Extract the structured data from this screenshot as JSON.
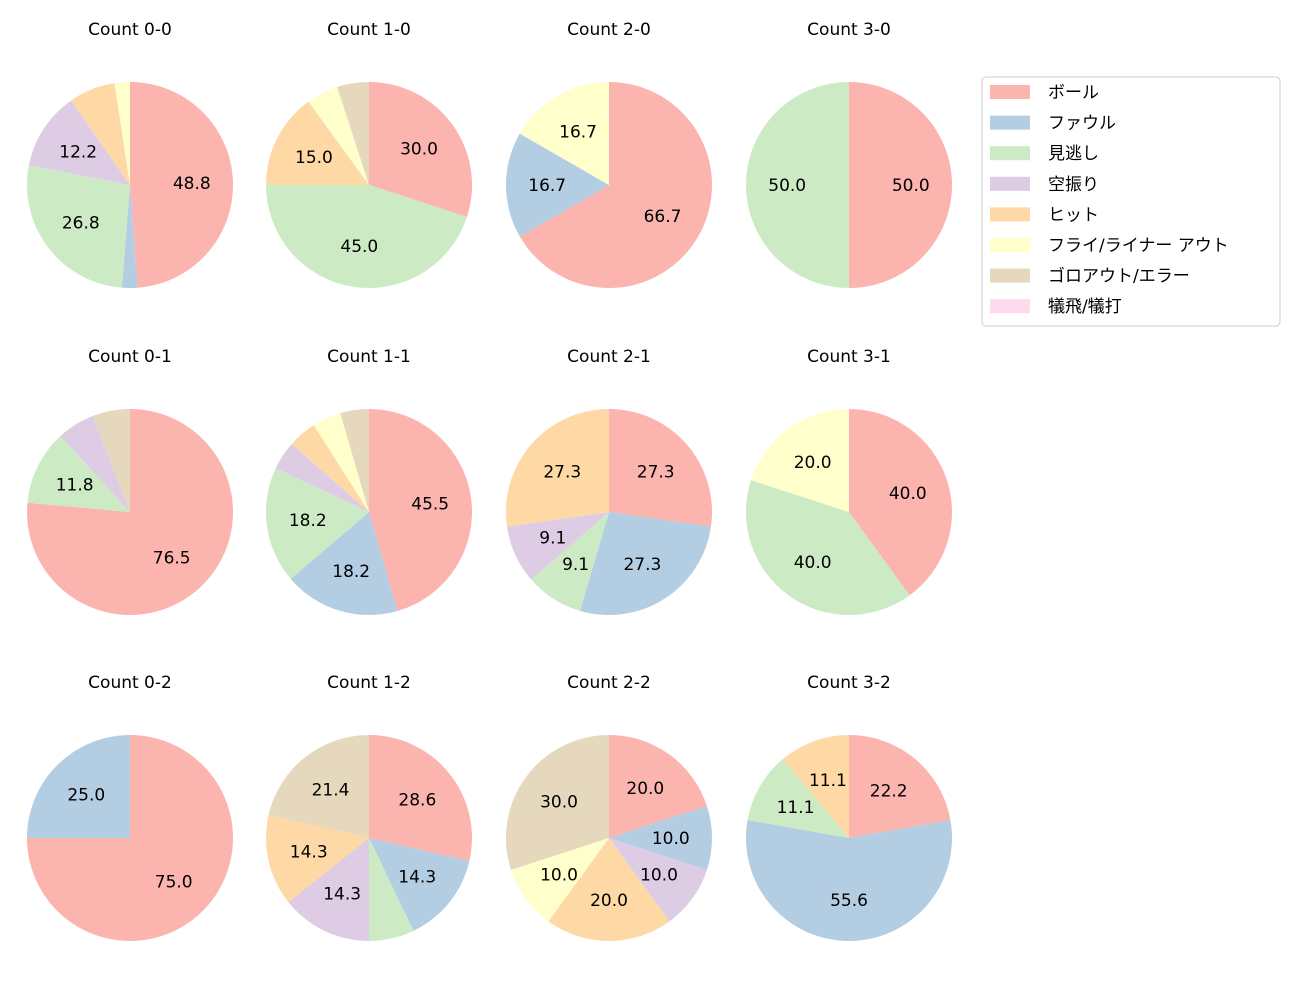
{
  "chart_data": {
    "type": "pie",
    "categories": [
      "ボール",
      "ファウル",
      "見逃し",
      "空振り",
      "ヒット",
      "フライ/ライナー アウト",
      "ゴロアウト/エラー",
      "犠飛/犠打"
    ],
    "colors": [
      "#fbb4ae",
      "#b3cde3",
      "#ccebc5",
      "#decbe4",
      "#fed9a6",
      "#ffffcc",
      "#e5d8bd",
      "#fddaec"
    ],
    "legend_placement": "upper-right",
    "start_angle": 90,
    "direction": "clockwise",
    "label_format": "%.1f",
    "pies": [
      {
        "title": "Count 0-0",
        "values": [
          48.8,
          2.4,
          26.8,
          12.2,
          7.3,
          2.4,
          0,
          0
        ]
      },
      {
        "title": "Count 1-0",
        "values": [
          30.0,
          0,
          45.0,
          0,
          15.0,
          5.0,
          5.0,
          0
        ]
      },
      {
        "title": "Count 2-0",
        "values": [
          66.7,
          16.7,
          0,
          0,
          0,
          16.7,
          0,
          0
        ]
      },
      {
        "title": "Count 3-0",
        "values": [
          50.0,
          0,
          50.0,
          0,
          0,
          0,
          0,
          0
        ]
      },
      {
        "title": "Count 0-1",
        "values": [
          76.5,
          0,
          11.8,
          5.9,
          0,
          0,
          5.9,
          0
        ]
      },
      {
        "title": "Count 1-1",
        "values": [
          45.5,
          18.2,
          18.2,
          4.5,
          4.5,
          4.5,
          4.5,
          0
        ]
      },
      {
        "title": "Count 2-1",
        "values": [
          27.3,
          27.3,
          9.1,
          9.1,
          27.3,
          0,
          0,
          0
        ]
      },
      {
        "title": "Count 3-1",
        "values": [
          40.0,
          0,
          40.0,
          0,
          0,
          20.0,
          0,
          0
        ]
      },
      {
        "title": "Count 0-2",
        "values": [
          75.0,
          25.0,
          0,
          0,
          0,
          0,
          0,
          0
        ]
      },
      {
        "title": "Count 1-2",
        "values": [
          28.6,
          14.3,
          7.1,
          14.3,
          14.3,
          0,
          21.4,
          0
        ]
      },
      {
        "title": "Count 2-2",
        "values": [
          20.0,
          10.0,
          0,
          10.0,
          20.0,
          10.0,
          30.0,
          0
        ]
      },
      {
        "title": "Count 3-2",
        "values": [
          22.2,
          55.6,
          11.1,
          0,
          11.1,
          0,
          0,
          0
        ]
      }
    ]
  }
}
